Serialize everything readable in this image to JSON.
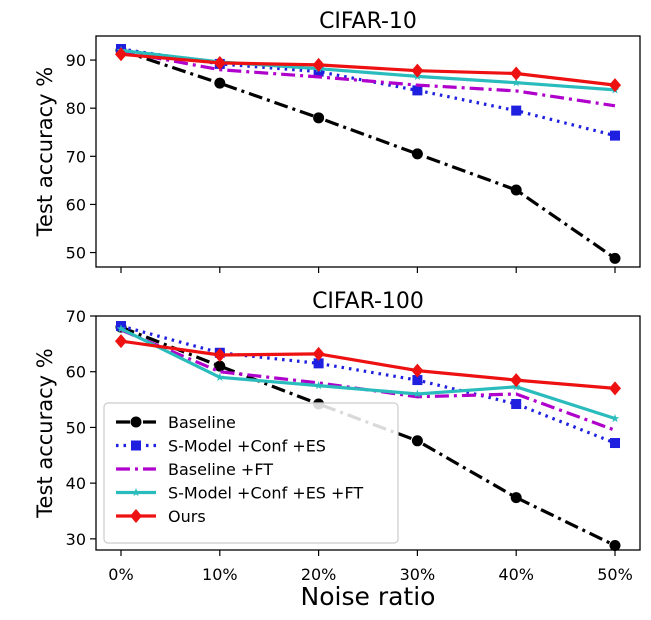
{
  "figure": {
    "xlabel": "Noise ratio"
  },
  "chart_data": [
    {
      "type": "line",
      "title": "CIFAR-10",
      "xlabel": "",
      "ylabel": "Test accuracy %",
      "categories": [
        "0%",
        "10%",
        "20%",
        "30%",
        "40%",
        "50%"
      ],
      "ylim": [
        47,
        95
      ],
      "yticks": [
        50,
        60,
        70,
        80,
        90
      ],
      "grid": false,
      "series": [
        {
          "name": "Baseline",
          "values": [
            92.0,
            85.2,
            78.0,
            70.5,
            63.0,
            48.8
          ],
          "color": "#000000",
          "dash": "dashdot",
          "marker": "circle"
        },
        {
          "name": "S-Model +Conf +ES",
          "values": [
            92.3,
            89.2,
            87.6,
            83.7,
            79.5,
            74.3
          ],
          "color": "#1f1fe0",
          "dash": "dotted",
          "marker": "square"
        },
        {
          "name": "Baseline +FT",
          "values": [
            91.8,
            88.0,
            86.5,
            84.8,
            83.6,
            80.5
          ],
          "color": "#b000cc",
          "dash": "dashdot",
          "marker": "none"
        },
        {
          "name": "S-Model +Conf +ES +FT",
          "values": [
            92.0,
            89.6,
            88.2,
            86.6,
            85.3,
            83.8
          ],
          "color": "#2abcbc",
          "dash": "solid",
          "marker": "star"
        },
        {
          "name": "Ours",
          "values": [
            91.2,
            89.4,
            89.0,
            87.8,
            87.2,
            84.8
          ],
          "color": "#ee1111",
          "dash": "solid",
          "marker": "diamond"
        }
      ]
    },
    {
      "type": "line",
      "title": "CIFAR-100",
      "xlabel": "Noise ratio",
      "ylabel": "Test accuracy %",
      "categories": [
        "0%",
        "10%",
        "20%",
        "30%",
        "40%",
        "50%"
      ],
      "ylim": [
        28,
        70
      ],
      "yticks": [
        30,
        40,
        50,
        60,
        70
      ],
      "grid": false,
      "legend": "lower-left",
      "series": [
        {
          "name": "Baseline",
          "values": [
            68.0,
            61.0,
            54.2,
            47.6,
            37.4,
            28.8
          ],
          "color": "#000000",
          "dash": "dashdot",
          "marker": "circle"
        },
        {
          "name": "S-Model +Conf +ES",
          "values": [
            68.2,
            63.4,
            61.5,
            58.5,
            54.2,
            47.2
          ],
          "color": "#1f1fe0",
          "dash": "dotted",
          "marker": "square"
        },
        {
          "name": "Baseline +FT",
          "values": [
            67.5,
            60.0,
            58.0,
            55.5,
            56.0,
            49.5
          ],
          "color": "#b000cc",
          "dash": "dashdot",
          "marker": "none"
        },
        {
          "name": "S-Model +Conf +ES +FT",
          "values": [
            67.7,
            59.0,
            57.5,
            56.0,
            57.3,
            51.6
          ],
          "color": "#2abcbc",
          "dash": "solid",
          "marker": "star"
        },
        {
          "name": "Ours",
          "values": [
            65.5,
            63.0,
            63.2,
            60.2,
            58.5,
            57.0
          ],
          "color": "#ee1111",
          "dash": "solid",
          "marker": "diamond"
        }
      ]
    }
  ]
}
